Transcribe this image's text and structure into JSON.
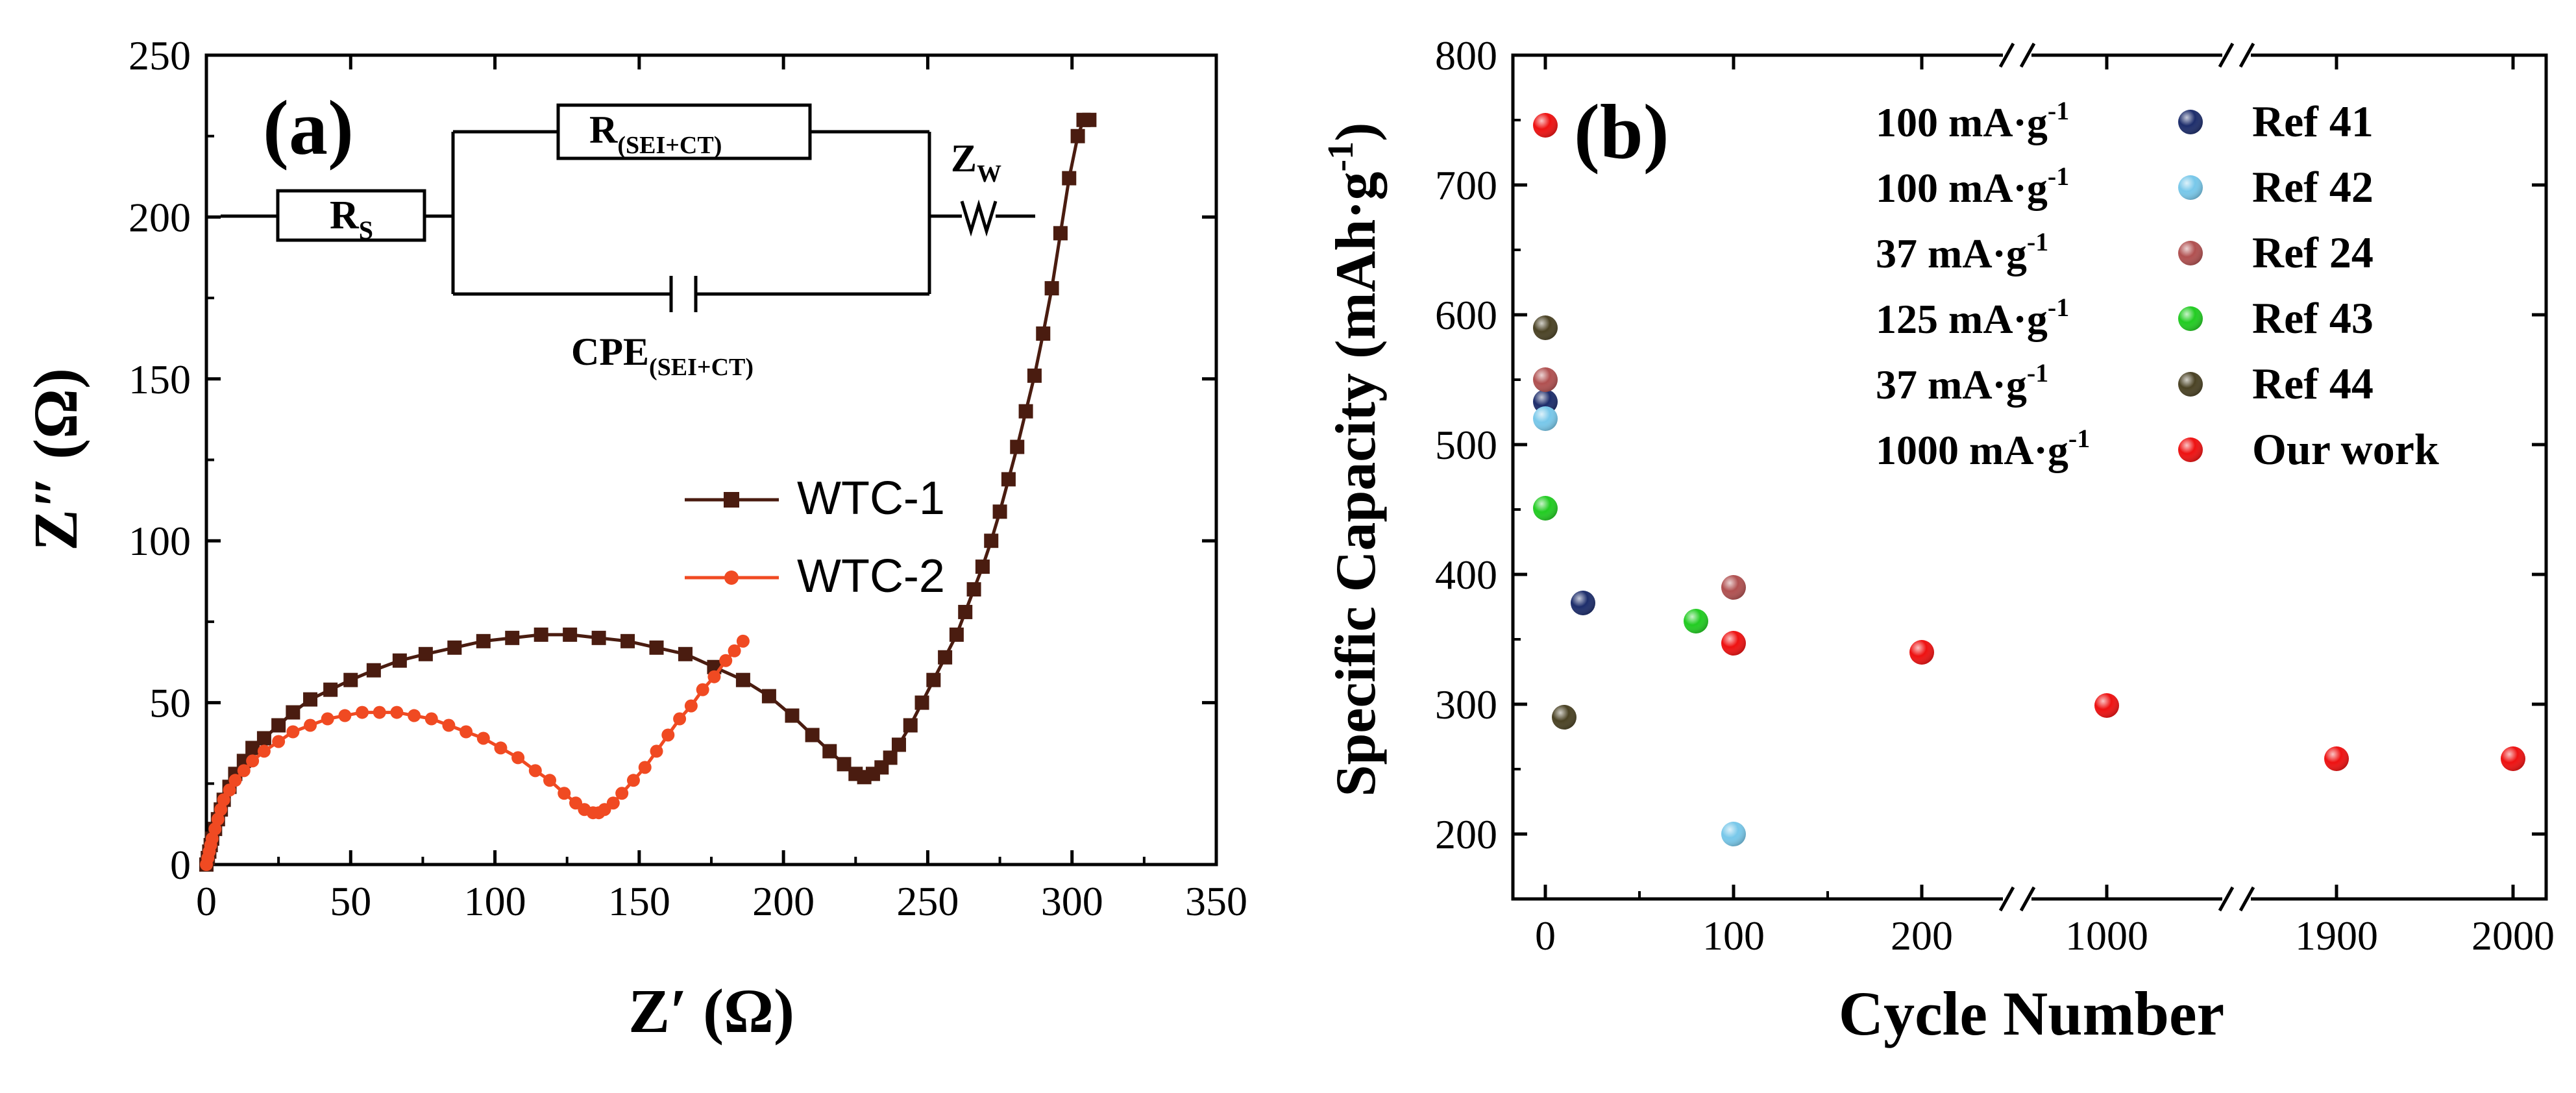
{
  "chart_data": [
    {
      "type": "line",
      "panel_label": "(a)",
      "xlabel": "Z′ (Ω)",
      "ylabel": "Z″ (Ω)",
      "xlim": [
        0,
        350
      ],
      "ylim": [
        0,
        250
      ],
      "xticks": [
        0,
        50,
        100,
        150,
        200,
        250,
        300,
        350
      ],
      "yticks": [
        0,
        50,
        100,
        150,
        200,
        250
      ],
      "grid": false,
      "legend_position": "center-right",
      "series": [
        {
          "name": "WTC-1",
          "color": "#4a1c10",
          "marker": "square",
          "x": [
            0,
            0.5,
            1,
            1.5,
            2,
            3,
            4,
            5,
            6,
            8,
            10,
            13,
            16,
            20,
            25,
            30,
            36,
            43,
            50,
            58,
            67,
            76,
            86,
            96,
            106,
            116,
            126,
            136,
            146,
            156,
            166,
            176,
            186,
            195,
            203,
            210,
            216,
            221,
            225,
            228,
            231,
            234,
            237,
            240,
            244,
            248,
            252,
            256,
            260,
            263,
            266,
            269,
            272,
            275,
            278,
            281,
            284,
            287,
            290,
            293,
            296,
            299,
            302,
            304,
            306
          ],
          "y": [
            0,
            2,
            4,
            6,
            8,
            11,
            14,
            17,
            20,
            24,
            28,
            32,
            36,
            39,
            43,
            47,
            51,
            54,
            57,
            60,
            63,
            65,
            67,
            69,
            70,
            71,
            71,
            70,
            69,
            67,
            65,
            61,
            57,
            52,
            46,
            40,
            35,
            31,
            28,
            27,
            28,
            30,
            33,
            37,
            43,
            50,
            57,
            64,
            71,
            78,
            85,
            92,
            100,
            109,
            119,
            129,
            140,
            151,
            164,
            178,
            195,
            212,
            225,
            230,
            230
          ]
        },
        {
          "name": "WTC-2",
          "color": "#f04a22",
          "marker": "circle",
          "x": [
            0,
            0.5,
            1,
            1.5,
            2,
            3,
            4,
            5,
            6,
            8,
            10,
            13,
            16,
            20,
            25,
            30,
            36,
            42,
            48,
            54,
            60,
            66,
            72,
            78,
            84,
            90,
            96,
            102,
            108,
            114,
            119,
            124,
            128,
            131,
            134,
            136,
            138,
            141,
            144,
            148,
            152,
            156,
            160,
            164,
            168,
            172,
            176,
            180,
            183,
            186
          ],
          "y": [
            0,
            2,
            4,
            6,
            8,
            11,
            14,
            17,
            20,
            23,
            26,
            29,
            32,
            35,
            38,
            41,
            43,
            45,
            46,
            47,
            47,
            47,
            46,
            45,
            43,
            41,
            39,
            36,
            33,
            29,
            26,
            22,
            19,
            17,
            16,
            16,
            17,
            19,
            22,
            26,
            30,
            35,
            40,
            45,
            49,
            54,
            58,
            63,
            66,
            69
          ]
        }
      ],
      "circuit": {
        "rs": "R",
        "rs_sub": "S",
        "r": "R",
        "r_sub": "(SEI+CT)",
        "zw": "Z",
        "zw_sub": "W",
        "cpe": "CPE",
        "cpe_sub": "(SEI+CT)"
      }
    },
    {
      "type": "scatter",
      "panel_label": "(b)",
      "xlabel": "Cycle Number",
      "ylabel": "Specific Capacity (mAh·g",
      "ylabel_sup": "-1",
      "ylabel_end": ")",
      "x_broken_axis": true,
      "xticks": [
        "0",
        "100",
        "200",
        "1000",
        "1900",
        "2000"
      ],
      "ylim": [
        150,
        800
      ],
      "yticks": [
        200,
        300,
        400,
        500,
        600,
        700,
        800
      ],
      "grid": false,
      "legend_position": "top-right",
      "series": [
        {
          "name": "Ref 41",
          "rate": "100 mA·g",
          "rate_sup": "-1",
          "color": "#1d2d6b",
          "x": [
            0,
            20
          ],
          "y": [
            533,
            378
          ]
        },
        {
          "name": "Ref 42",
          "rate": "100 mA·g",
          "rate_sup": "-1",
          "color": "#78c8ea",
          "x": [
            0,
            100
          ],
          "y": [
            520,
            200
          ]
        },
        {
          "name": "Ref 24",
          "rate": "37 mA·g",
          "rate_sup": "-1",
          "color": "#b05050",
          "x": [
            0,
            100
          ],
          "y": [
            550,
            390
          ]
        },
        {
          "name": "Ref 43",
          "rate": "125 mA·g",
          "rate_sup": "-1",
          "color": "#22cc22",
          "x": [
            0,
            80
          ],
          "y": [
            451,
            364
          ]
        },
        {
          "name": "Ref 44",
          "rate": "37 mA·g",
          "rate_sup": "-1",
          "color": "#4a4224",
          "x": [
            0,
            10
          ],
          "y": [
            590,
            290
          ]
        },
        {
          "name": "Our work",
          "rate": "1000 mA·g",
          "rate_sup": "-1",
          "color": "#ee1111",
          "x": [
            0,
            100,
            200,
            1000,
            1900,
            2000
          ],
          "y": [
            746,
            347,
            340,
            299,
            258,
            258
          ]
        }
      ]
    }
  ]
}
